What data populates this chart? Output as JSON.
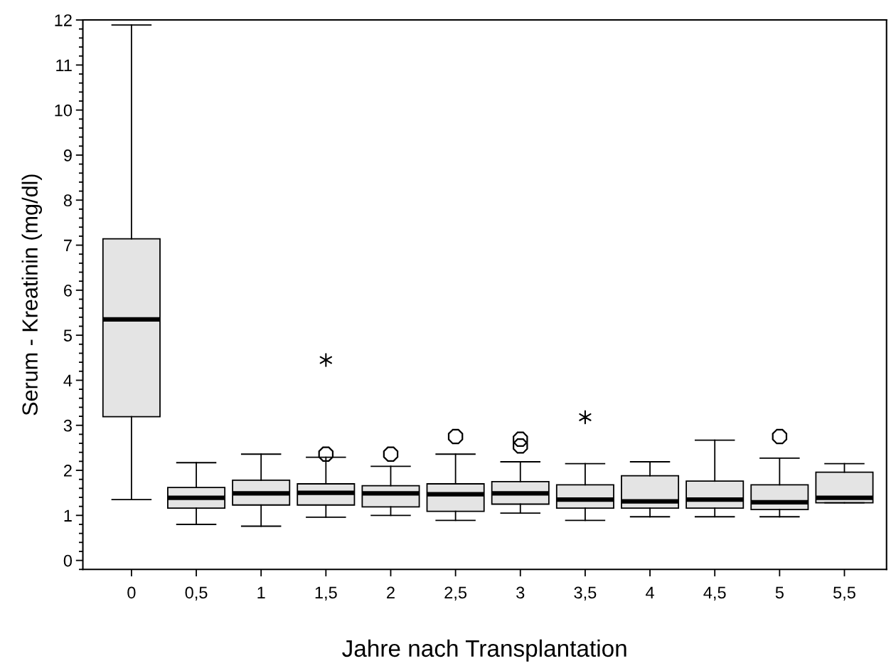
{
  "chart_data": {
    "type": "box",
    "xlabel": "Jahre nach Transplantation",
    "ylabel": "Serum - Kreatinin (mg/dl)",
    "categories": [
      "0",
      "0,5",
      "1",
      "1,5",
      "2",
      "2,5",
      "3",
      "3,5",
      "4",
      "4,5",
      "5",
      "5,5"
    ],
    "ylim": [
      -0.2,
      12
    ],
    "yticks": [
      0,
      1,
      2,
      3,
      4,
      5,
      6,
      7,
      8,
      9,
      10,
      11,
      12
    ],
    "grid": false,
    "series": [
      {
        "color": "#e4e4e4",
        "boxes": [
          {
            "low": 1.35,
            "q1": 3.19,
            "median": 5.35,
            "q3": 7.14,
            "high": 11.89
          },
          {
            "low": 0.8,
            "q1": 1.16,
            "median": 1.39,
            "q3": 1.62,
            "high": 2.17
          },
          {
            "low": 0.76,
            "q1": 1.23,
            "median": 1.49,
            "q3": 1.78,
            "high": 2.36
          },
          {
            "low": 0.96,
            "q1": 1.23,
            "median": 1.5,
            "q3": 1.7,
            "high": 2.29,
            "outliers": [
              2.36
            ]
          },
          {
            "low": 1.0,
            "q1": 1.19,
            "median": 1.49,
            "q3": 1.66,
            "high": 2.09,
            "outliers": [
              2.36
            ]
          },
          {
            "low": 0.89,
            "q1": 1.09,
            "median": 1.47,
            "q3": 1.7,
            "high": 2.36,
            "outliers": [
              2.75
            ]
          },
          {
            "low": 1.05,
            "q1": 1.25,
            "median": 1.49,
            "q3": 1.75,
            "high": 2.19,
            "outliers": [
              2.69,
              2.54
            ]
          },
          {
            "low": 0.89,
            "q1": 1.16,
            "median": 1.35,
            "q3": 1.68,
            "high": 2.15
          },
          {
            "low": 0.97,
            "q1": 1.16,
            "median": 1.31,
            "q3": 1.88,
            "high": 2.19
          },
          {
            "low": 0.97,
            "q1": 1.16,
            "median": 1.35,
            "q3": 1.76,
            "high": 2.67
          },
          {
            "low": 0.97,
            "q1": 1.13,
            "median": 1.29,
            "q3": 1.68,
            "high": 2.27,
            "outliers": [
              2.75
            ]
          },
          {
            "low": 1.28,
            "q1": 1.28,
            "median": 1.39,
            "q3": 1.96,
            "high": 2.15
          }
        ]
      },
      {
        "type": "scatter",
        "color": "#000000",
        "marker": "cross",
        "x": [
          "1,5",
          "3,5"
        ],
        "values": [
          4.45,
          3.18
        ]
      }
    ]
  }
}
